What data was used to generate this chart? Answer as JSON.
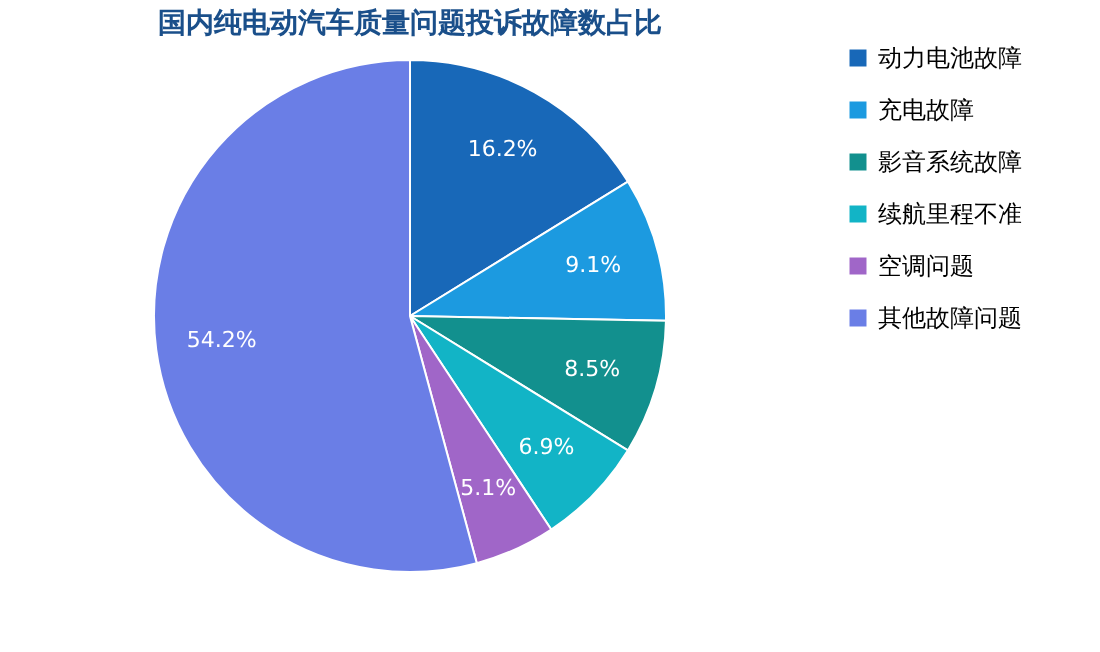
{
  "chart_data": {
    "type": "pie",
    "title": "国内纯电动汽车质量问题投诉故障数占比",
    "categories": [
      "动力电池故障",
      "充电故障",
      "影音系统故障",
      "续航里程不准",
      "空调问题",
      "其他故障问题"
    ],
    "values": [
      16.2,
      9.1,
      8.5,
      6.9,
      5.1,
      54.2
    ],
    "colors": [
      "#1868b8",
      "#1c9ae0",
      "#12908e",
      "#12b4c6",
      "#a066c8",
      "#6a7ee6"
    ],
    "value_labels": [
      "16.2%",
      "9.1%",
      "8.5%",
      "6.9%",
      "5.1%",
      "54.2%"
    ],
    "legend": "right"
  }
}
